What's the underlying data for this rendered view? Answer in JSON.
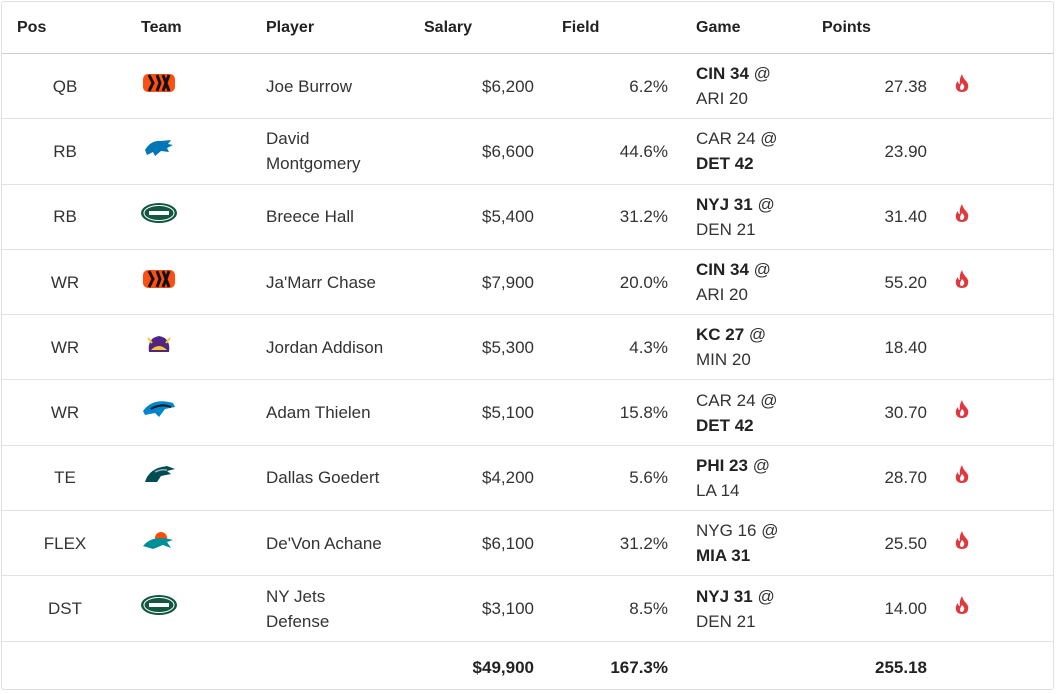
{
  "table": {
    "columns": [
      "Pos",
      "Team",
      "Player",
      "Salary",
      "Field",
      "Game",
      "Points"
    ],
    "game_separator": "@",
    "rows": [
      {
        "pos": "QB",
        "player": [
          "Joe Burrow"
        ],
        "salary": "$6,200",
        "field": "6.2%",
        "game": {
          "away": "CIN 34",
          "home": "ARI 20",
          "bold": "away"
        },
        "points": "27.38",
        "hot": true
      },
      {
        "pos": "RB",
        "player": [
          "David",
          "Montgomery"
        ],
        "salary": "$6,600",
        "field": "44.6%",
        "game": {
          "away": "CAR 24",
          "home": "DET 42",
          "bold": "home"
        },
        "points": "23.90",
        "hot": false
      },
      {
        "pos": "RB",
        "player": [
          "Breece Hall"
        ],
        "salary": "$5,400",
        "field": "31.2%",
        "game": {
          "away": "NYJ 31",
          "home": "DEN 21",
          "bold": "away"
        },
        "points": "31.40",
        "hot": true
      },
      {
        "pos": "WR",
        "player": [
          "Ja'Marr Chase"
        ],
        "salary": "$7,900",
        "field": "20.0%",
        "game": {
          "away": "CIN 34",
          "home": "ARI 20",
          "bold": "away"
        },
        "points": "55.20",
        "hot": true
      },
      {
        "pos": "WR",
        "player": [
          "Jordan Addison"
        ],
        "salary": "$5,300",
        "field": "4.3%",
        "game": {
          "away": "KC 27",
          "home": "MIN 20",
          "bold": "away"
        },
        "points": "18.40",
        "hot": false
      },
      {
        "pos": "WR",
        "player": [
          "Adam Thielen"
        ],
        "salary": "$5,100",
        "field": "15.8%",
        "game": {
          "away": "CAR 24",
          "home": "DET 42",
          "bold": "home"
        },
        "points": "30.70",
        "hot": true
      },
      {
        "pos": "TE",
        "player": [
          "Dallas Goedert"
        ],
        "salary": "$4,200",
        "field": "5.6%",
        "game": {
          "away": "PHI 23",
          "home": "LA 14",
          "bold": "away"
        },
        "points": "28.70",
        "hot": true
      },
      {
        "pos": "FLEX",
        "player": [
          "De'Von Achane"
        ],
        "salary": "$6,100",
        "field": "31.2%",
        "game": {
          "away": "NYG 16",
          "home": "MIA 31",
          "bold": "home"
        },
        "points": "25.50",
        "hot": true
      },
      {
        "pos": "DST",
        "player": [
          "NY Jets",
          "Defense"
        ],
        "salary": "$3,100",
        "field": "8.5%",
        "game": {
          "away": "NYJ 31",
          "home": "DEN 21",
          "bold": "away"
        },
        "points": "14.00",
        "hot": true
      }
    ],
    "totals": {
      "salary": "$49,900",
      "field": "167.3%",
      "points": "255.18"
    }
  }
}
